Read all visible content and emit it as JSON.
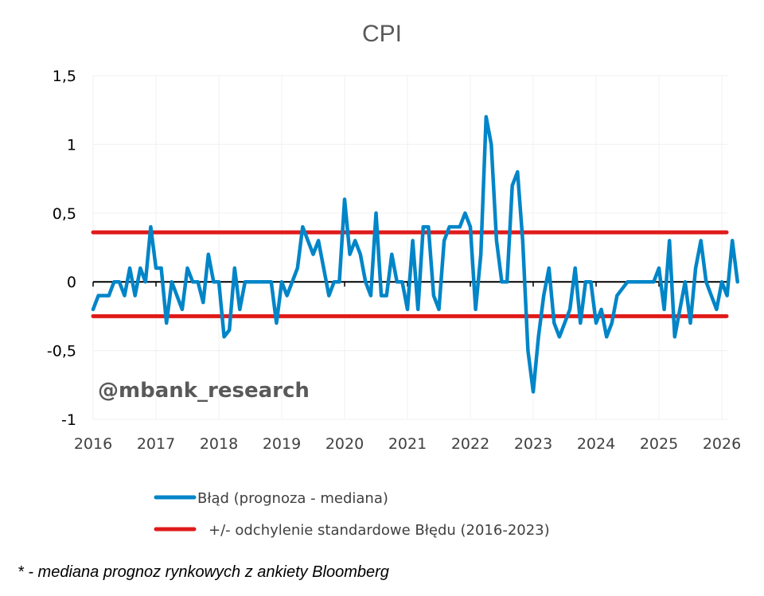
{
  "chart_data": {
    "type": "line",
    "title": "CPI",
    "xlabel": "",
    "ylabel": "",
    "x_ticks": [
      "2016",
      "2017",
      "2018",
      "2019",
      "2020",
      "2021",
      "2022",
      "2023",
      "2024",
      "2025",
      "2026"
    ],
    "y_ticks": [
      "1,5",
      "1",
      "0,5",
      "0",
      "-0,5",
      "-1"
    ],
    "y_tick_values": [
      1.5,
      1,
      0.5,
      0,
      -0.5,
      -1
    ],
    "xlim": [
      2016,
      2026
    ],
    "ylim": [
      -1,
      1.5
    ],
    "grid": true,
    "watermark": "@mbank_research",
    "series": [
      {
        "name": "Błąd (prognoza - mediana)",
        "color": "#0085C8",
        "start": "2016-01",
        "frequency": "monthly",
        "values": [
          -0.2,
          -0.1,
          -0.1,
          -0.1,
          0,
          0,
          -0.1,
          0.1,
          -0.1,
          0.1,
          0,
          0.4,
          0.1,
          0.1,
          -0.3,
          0,
          -0.1,
          -0.2,
          0.1,
          0,
          0,
          -0.15,
          0.2,
          0,
          0,
          -0.4,
          -0.35,
          0.1,
          -0.2,
          0,
          0,
          0,
          0,
          0,
          0,
          -0.3,
          0,
          -0.1,
          0,
          0.1,
          0.4,
          0.3,
          0.2,
          0.3,
          0.1,
          -0.1,
          0,
          0,
          0.6,
          0.2,
          0.3,
          0.2,
          0,
          -0.1,
          0.5,
          -0.1,
          -0.1,
          0.2,
          0,
          0,
          -0.2,
          0.3,
          -0.2,
          0.4,
          0.4,
          -0.1,
          -0.2,
          0.3,
          0.4,
          0.4,
          0.4,
          0.5,
          0.4,
          -0.2,
          0.2,
          1.2,
          1.0,
          0.3,
          0,
          0,
          0.7,
          0.8,
          0.3,
          -0.5,
          -0.8,
          -0.4,
          -0.1,
          0.1,
          -0.3,
          -0.4,
          -0.3,
          -0.2,
          0.1,
          -0.3,
          0,
          0,
          -0.3,
          -0.2,
          -0.4,
          -0.3,
          -0.1,
          -0.05,
          0,
          0,
          0,
          0,
          0,
          0,
          0.1,
          -0.2,
          0.3,
          -0.4,
          -0.2,
          0,
          -0.3,
          0.1,
          0.3,
          0,
          -0.1,
          -0.2,
          0,
          -0.1,
          0.3,
          0
        ]
      },
      {
        "name": "+/- odchylenie standardowe Błędu (2016-2023)",
        "color": "#E01A1A",
        "values_upper": 0.36,
        "values_lower": -0.25
      }
    ],
    "legend_position": "bottom"
  },
  "footnote": "* - mediana prognoz rynkowych z ankiety Bloomberg"
}
